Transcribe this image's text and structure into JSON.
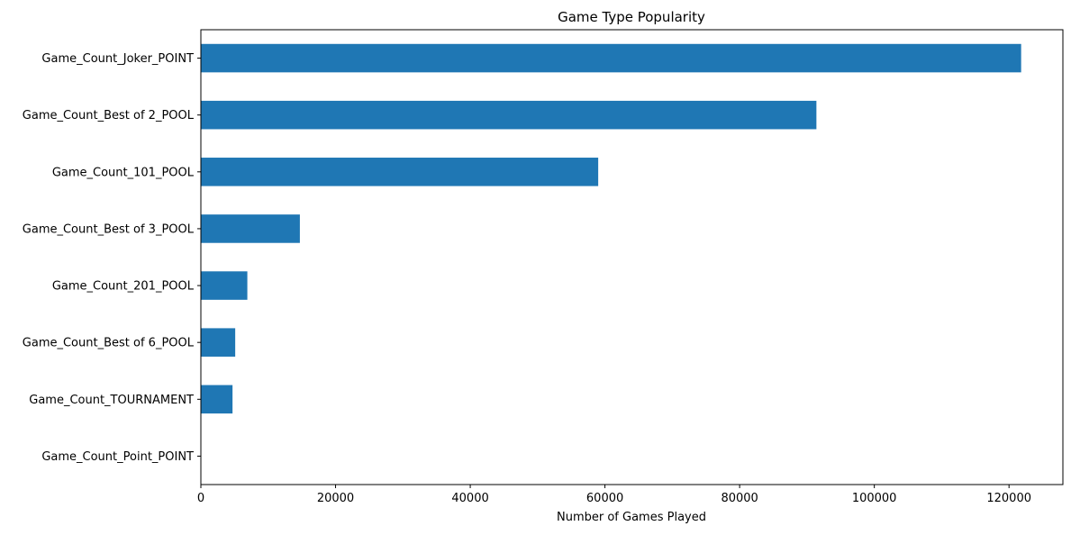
{
  "chart_data": {
    "type": "bar",
    "orientation": "horizontal",
    "title": "Game Type Popularity",
    "xlabel": "Number of Games Played",
    "ylabel": "",
    "categories": [
      "Game_Count_Joker_POINT",
      "Game_Count_Best of 2_POOL",
      "Game_Count_101_POOL",
      "Game_Count_Best of 3_POOL",
      "Game_Count_201_POOL",
      "Game_Count_Best of 6_POOL",
      "Game_Count_TOURNAMENT",
      "Game_Count_Point_POINT"
    ],
    "values": [
      121800,
      91400,
      59000,
      14700,
      6900,
      5100,
      4700,
      0
    ],
    "xlim": [
      0,
      128000
    ],
    "xticks": [
      0,
      20000,
      40000,
      60000,
      80000,
      100000,
      120000
    ],
    "xtick_labels": [
      "0",
      "20000",
      "40000",
      "60000",
      "80000",
      "100000",
      "120000"
    ],
    "grid": false,
    "legend": "none",
    "bar_color": "#1f77b4"
  }
}
